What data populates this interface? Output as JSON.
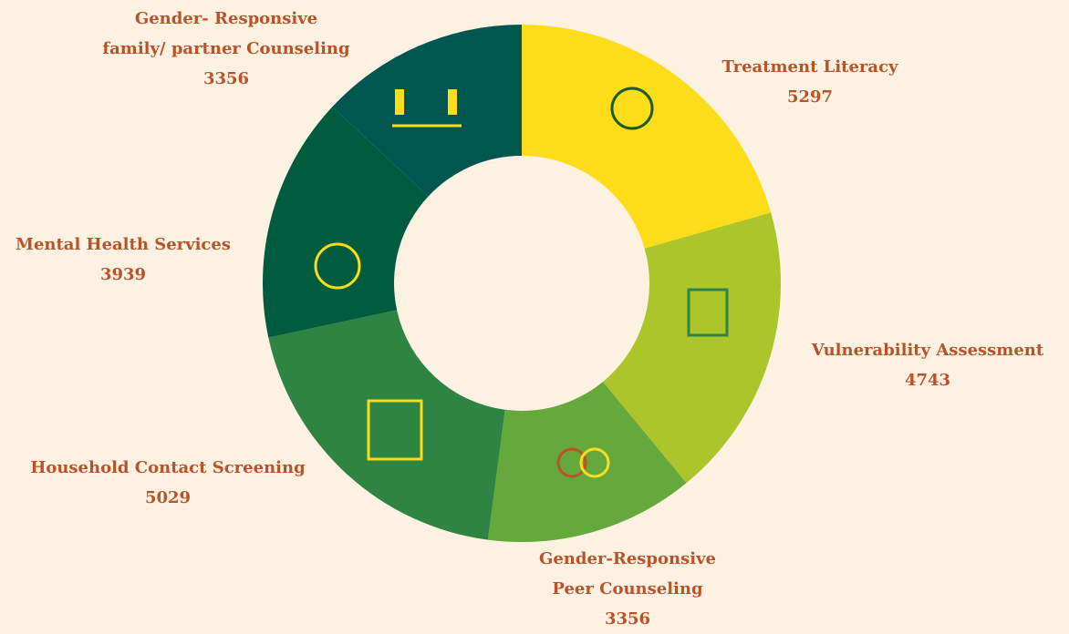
{
  "chart_data": {
    "type": "donut",
    "categories": [
      "Treatment Literacy",
      "Vulnerability Assessment",
      "Gender-Responsive\nPeer Counseling",
      "Household Contact Screening",
      "Mental Health Services",
      "Gender- Responsive\nfamily/ partner Counseling"
    ],
    "values": [
      5297,
      4743,
      3356,
      5029,
      3939,
      3356
    ],
    "colors": [
      "#fddd1a",
      "#abc52a",
      "#65a83b",
      "#2d8443",
      "#005c3f",
      "#00574f"
    ]
  }
}
